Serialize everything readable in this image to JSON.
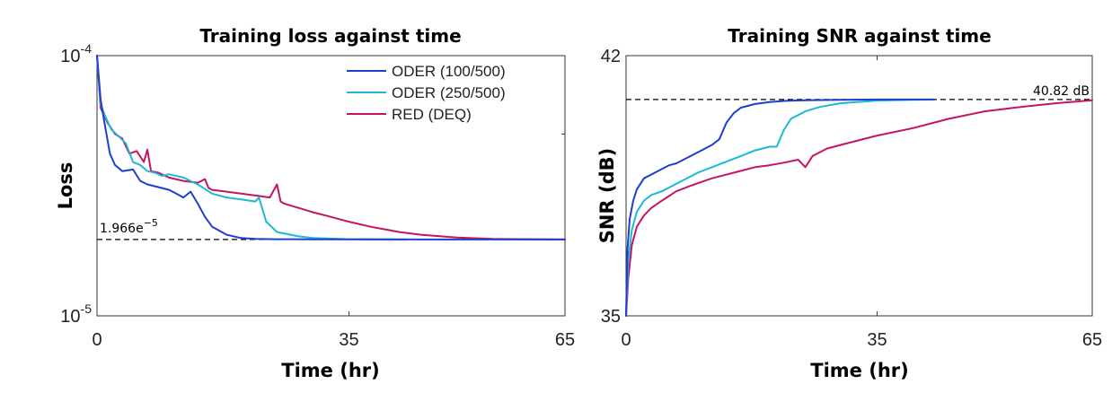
{
  "chart_data": [
    {
      "type": "line",
      "title": "Training loss against time",
      "xlabel": "Time (hr)",
      "ylabel": "Loss",
      "xlim": [
        0,
        65
      ],
      "ylim": [
        1e-05,
        0.0001
      ],
      "yscale": "log",
      "x_ticks": [
        "0",
        "35",
        "65"
      ],
      "y_tick_base": "10",
      "y_ticks": [
        {
          "exp": "-5"
        },
        {
          "exp": "-4"
        }
      ],
      "legend": {
        "position": "top-right",
        "entries": [
          "ODER (100/500)",
          "ODER (250/500)",
          "RED (DEQ)"
        ]
      },
      "reference_line": {
        "y": 1.966e-05,
        "label_base": "1.966e",
        "label_exp": "−5",
        "style": "dashed"
      },
      "grid": false,
      "series": [
        {
          "name": "ODER (100/500)",
          "color": "#1d3fcc",
          "x": [
            0,
            0.5,
            1.0,
            1.8,
            2.5,
            3.5,
            5,
            6,
            7,
            8,
            9,
            10,
            11,
            12,
            13,
            14,
            15,
            16,
            18,
            20,
            22,
            25,
            28,
            30,
            35,
            40,
            45,
            50,
            55,
            60,
            65
          ],
          "y": [
            0.0001,
            6.8e-05,
            5.6e-05,
            4.2e-05,
            3.8e-05,
            3.6e-05,
            3.65e-05,
            3.3e-05,
            3.2e-05,
            3.15e-05,
            3.1e-05,
            3.05e-05,
            2.95e-05,
            2.85e-05,
            3e-05,
            2.7e-05,
            2.4e-05,
            2.2e-05,
            2.05e-05,
            1.99e-05,
            1.975e-05,
            1.97e-05,
            1.97e-05,
            1.968e-05,
            1.967e-05,
            1.967e-05,
            1.966e-05,
            1.966e-05,
            1.966e-05,
            1.966e-05,
            1.966e-05
          ]
        },
        {
          "name": "ODER (250/500)",
          "color": "#1db8d8",
          "x": [
            0,
            0.5,
            1.2,
            2,
            3,
            4,
            5,
            6,
            7,
            8,
            9,
            10,
            12,
            14,
            16,
            18,
            20,
            22,
            22.5,
            23.5,
            25,
            28,
            30,
            35,
            40,
            43
          ],
          "y": [
            0.0001,
            6.5e-05,
            5.8e-05,
            5.2e-05,
            4.9e-05,
            4.6e-05,
            3.9e-05,
            3.8e-05,
            3.6e-05,
            3.55e-05,
            3.45e-05,
            3.5e-05,
            3.4e-05,
            3.2e-05,
            2.95e-05,
            2.85e-05,
            2.8e-05,
            2.75e-05,
            2.85e-05,
            2.3e-05,
            2.1e-05,
            2.02e-05,
            1.99e-05,
            1.97e-05,
            1.965e-05,
            1.965e-05
          ]
        },
        {
          "name": "RED (DEQ)",
          "color": "#c41464",
          "x": [
            0,
            0.5,
            1.5,
            2.5,
            3.5,
            4.5,
            5.5,
            6.5,
            7,
            7.5,
            8.5,
            10,
            12,
            14,
            15,
            15.5,
            16,
            18,
            20,
            22,
            24,
            25,
            25.5,
            26,
            28,
            30,
            32,
            35,
            38,
            40,
            42,
            45,
            50,
            55,
            60,
            65
          ],
          "y": [
            0.0001,
            6.3e-05,
            5.5e-05,
            5e-05,
            4.8e-05,
            4.2e-05,
            4.3e-05,
            3.9e-05,
            4.35e-05,
            3.6e-05,
            3.55e-05,
            3.4e-05,
            3.3e-05,
            3.25e-05,
            3.35e-05,
            3.1e-05,
            3.05e-05,
            3e-05,
            2.95e-05,
            2.9e-05,
            2.85e-05,
            3.2e-05,
            2.75e-05,
            2.7e-05,
            2.6e-05,
            2.5e-05,
            2.42e-05,
            2.3e-05,
            2.2e-05,
            2.15e-05,
            2.1e-05,
            2.05e-05,
            2e-05,
            1.975e-05,
            1.97e-05,
            1.966e-05
          ]
        }
      ]
    },
    {
      "type": "line",
      "title": "Training SNR against time",
      "xlabel": "Time (hr)",
      "ylabel": "SNR (dB)",
      "xlim": [
        0,
        65
      ],
      "ylim": [
        35,
        42
      ],
      "x_ticks": [
        "0",
        "35",
        "65"
      ],
      "y_ticks": [
        "35",
        "42"
      ],
      "reference_line": {
        "y": 40.82,
        "label": "40.82 dB",
        "style": "dashed"
      },
      "grid": false,
      "series": [
        {
          "name": "ODER (100/500)",
          "color": "#1d3fcc",
          "x": [
            0,
            0.2,
            0.5,
            1,
            1.5,
            2.5,
            3.5,
            5,
            6,
            7,
            8,
            9,
            10,
            11,
            12,
            13,
            14,
            15,
            16,
            18,
            20,
            22,
            25,
            30,
            35,
            40,
            43
          ],
          "y": [
            35.0,
            36.8,
            37.6,
            38.1,
            38.4,
            38.7,
            38.8,
            38.95,
            39.05,
            39.1,
            39.2,
            39.3,
            39.4,
            39.5,
            39.6,
            39.75,
            40.2,
            40.45,
            40.6,
            40.7,
            40.75,
            40.78,
            40.8,
            40.81,
            40.82,
            40.82,
            40.82
          ]
        },
        {
          "name": "ODER (250/500)",
          "color": "#1db8d8",
          "x": [
            0,
            0.3,
            0.8,
            1.5,
            2.5,
            3.5,
            5,
            7,
            9,
            10,
            12,
            14,
            16,
            18,
            20,
            21,
            22,
            23,
            25,
            27,
            30,
            35,
            40,
            43
          ],
          "y": [
            35.0,
            36.5,
            37.3,
            37.8,
            38.1,
            38.25,
            38.35,
            38.55,
            38.75,
            38.85,
            39.0,
            39.15,
            39.3,
            39.45,
            39.55,
            39.55,
            40.0,
            40.3,
            40.5,
            40.62,
            40.72,
            40.79,
            40.81,
            40.82
          ]
        },
        {
          "name": "RED (DEQ)",
          "color": "#c41464",
          "x": [
            0,
            0.3,
            0.8,
            1.5,
            2.5,
            3.5,
            5,
            7,
            9,
            12,
            15,
            18,
            20,
            22,
            24,
            25,
            26,
            28,
            30,
            35,
            40,
            45,
            50,
            55,
            60,
            65
          ],
          "y": [
            35.0,
            36.0,
            36.9,
            37.4,
            37.7,
            37.9,
            38.1,
            38.35,
            38.5,
            38.7,
            38.85,
            39.0,
            39.05,
            39.12,
            39.2,
            39.0,
            39.3,
            39.5,
            39.6,
            39.85,
            40.05,
            40.3,
            40.5,
            40.62,
            40.72,
            40.8
          ]
        }
      ]
    }
  ]
}
